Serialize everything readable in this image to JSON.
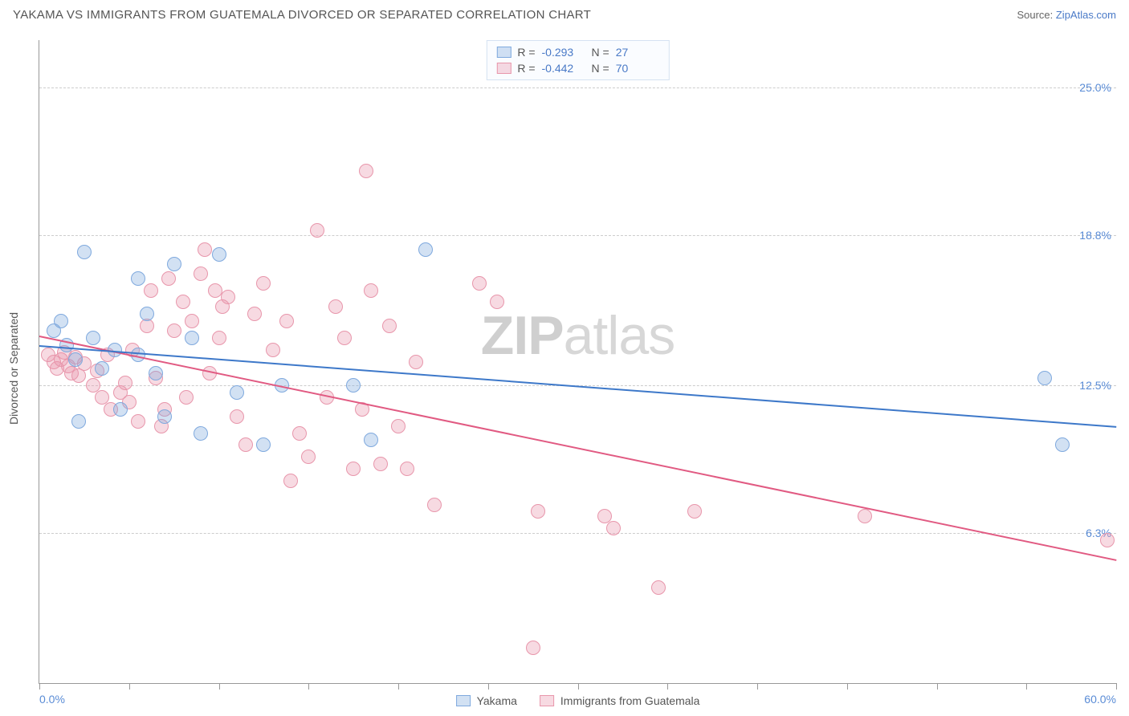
{
  "header": {
    "title": "YAKAMA VS IMMIGRANTS FROM GUATEMALA DIVORCED OR SEPARATED CORRELATION CHART",
    "source_prefix": "Source: ",
    "source_name": "ZipAtlas.com"
  },
  "watermark": {
    "zip": "ZIP",
    "atlas": "atlas"
  },
  "chart": {
    "type": "scatter",
    "xlim": [
      0,
      60
    ],
    "ylim": [
      0,
      27
    ],
    "xmin_label": "0.0%",
    "xmax_label": "60.0%",
    "xtick_positions": [
      0,
      5,
      10,
      15,
      20,
      25,
      30,
      35,
      40,
      45,
      50,
      55,
      60
    ],
    "yticks": [
      {
        "v": 6.3,
        "label": "6.3%"
      },
      {
        "v": 12.5,
        "label": "12.5%"
      },
      {
        "v": 18.8,
        "label": "18.8%"
      },
      {
        "v": 25.0,
        "label": "25.0%"
      }
    ],
    "grid_color": "#cccccc",
    "axis_color": "#999999",
    "yaxis_title": "Divorced or Separated",
    "background_color": "#ffffff",
    "marker_radius": 9,
    "series": {
      "yakama": {
        "label": "Yakama",
        "fill": "rgba(127,169,222,0.35)",
        "stroke": "#7fa9de",
        "line_color": "#3d78c9",
        "R": "-0.293",
        "N": "27",
        "trend": {
          "x1": 0,
          "y1": 14.2,
          "x2": 60,
          "y2": 10.8
        },
        "points": [
          [
            2.5,
            18.1
          ],
          [
            5.5,
            17.0
          ],
          [
            7.5,
            17.6
          ],
          [
            1.2,
            15.2
          ],
          [
            0.8,
            14.8
          ],
          [
            1.5,
            14.2
          ],
          [
            3.0,
            14.5
          ],
          [
            4.2,
            14.0
          ],
          [
            2.0,
            13.6
          ],
          [
            3.5,
            13.2
          ],
          [
            5.5,
            13.8
          ],
          [
            6.5,
            13.0
          ],
          [
            7.0,
            11.2
          ],
          [
            9.0,
            10.5
          ],
          [
            10.0,
            18.0
          ],
          [
            11.0,
            12.2
          ],
          [
            12.5,
            10.0
          ],
          [
            13.5,
            12.5
          ],
          [
            17.5,
            12.5
          ],
          [
            18.5,
            10.2
          ],
          [
            21.5,
            18.2
          ],
          [
            8.5,
            14.5
          ],
          [
            4.5,
            11.5
          ],
          [
            2.2,
            11.0
          ],
          [
            56.0,
            12.8
          ],
          [
            57.0,
            10.0
          ],
          [
            6.0,
            15.5
          ]
        ]
      },
      "guatemala": {
        "label": "Immigants from Guatemala",
        "label_full": "Immigrants from Guatemala",
        "fill": "rgba(232,150,171,0.35)",
        "stroke": "#e896ab",
        "line_color": "#e15a82",
        "R": "-0.442",
        "N": "70",
        "trend": {
          "x1": 0,
          "y1": 14.6,
          "x2": 60,
          "y2": 5.2
        },
        "points": [
          [
            0.5,
            13.8
          ],
          [
            0.8,
            13.5
          ],
          [
            1.0,
            13.2
          ],
          [
            1.2,
            13.6
          ],
          [
            1.4,
            13.9
          ],
          [
            1.6,
            13.3
          ],
          [
            1.8,
            13.0
          ],
          [
            2.0,
            13.7
          ],
          [
            2.2,
            12.9
          ],
          [
            2.5,
            13.4
          ],
          [
            3.0,
            12.5
          ],
          [
            3.2,
            13.1
          ],
          [
            3.5,
            12.0
          ],
          [
            3.8,
            13.8
          ],
          [
            4.0,
            11.5
          ],
          [
            4.5,
            12.2
          ],
          [
            5.0,
            11.8
          ],
          [
            5.2,
            14.0
          ],
          [
            5.5,
            11.0
          ],
          [
            6.0,
            15.0
          ],
          [
            6.2,
            16.5
          ],
          [
            6.5,
            12.8
          ],
          [
            7.0,
            11.5
          ],
          [
            7.2,
            17.0
          ],
          [
            7.5,
            14.8
          ],
          [
            8.0,
            16.0
          ],
          [
            8.5,
            15.2
          ],
          [
            9.0,
            17.2
          ],
          [
            9.2,
            18.2
          ],
          [
            9.5,
            13.0
          ],
          [
            10.0,
            14.5
          ],
          [
            10.2,
            15.8
          ],
          [
            10.5,
            16.2
          ],
          [
            11.0,
            11.2
          ],
          [
            11.5,
            10.0
          ],
          [
            12.0,
            15.5
          ],
          [
            12.5,
            16.8
          ],
          [
            13.0,
            14.0
          ],
          [
            13.8,
            15.2
          ],
          [
            14.0,
            8.5
          ],
          [
            14.5,
            10.5
          ],
          [
            15.5,
            19.0
          ],
          [
            15.0,
            9.5
          ],
          [
            16.0,
            12.0
          ],
          [
            16.5,
            15.8
          ],
          [
            17.0,
            14.5
          ],
          [
            17.5,
            9.0
          ],
          [
            18.0,
            11.5
          ],
          [
            18.2,
            21.5
          ],
          [
            18.5,
            16.5
          ],
          [
            19.0,
            9.2
          ],
          [
            19.5,
            15.0
          ],
          [
            20.0,
            10.8
          ],
          [
            20.5,
            9.0
          ],
          [
            21.0,
            13.5
          ],
          [
            22.0,
            7.5
          ],
          [
            24.5,
            16.8
          ],
          [
            25.5,
            16.0
          ],
          [
            27.5,
            1.5
          ],
          [
            27.8,
            7.2
          ],
          [
            31.5,
            7.0
          ],
          [
            32.0,
            6.5
          ],
          [
            34.5,
            4.0
          ],
          [
            36.5,
            7.2
          ],
          [
            46.0,
            7.0
          ],
          [
            59.5,
            6.0
          ],
          [
            4.8,
            12.6
          ],
          [
            6.8,
            10.8
          ],
          [
            8.2,
            12.0
          ],
          [
            9.8,
            16.5
          ]
        ]
      }
    }
  },
  "legend_top": {
    "R_label": "R =",
    "N_label": "N ="
  }
}
